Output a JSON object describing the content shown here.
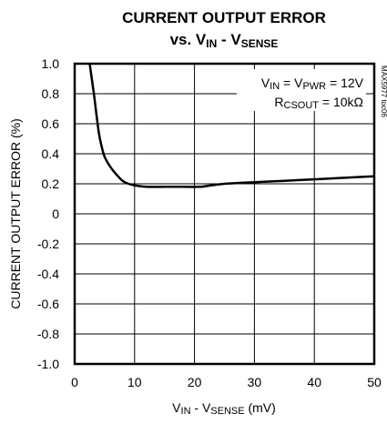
{
  "chart_data": {
    "type": "line",
    "title_line1": "CURRENT OUTPUT ERROR",
    "title_line2": {
      "prefix": "vs. V",
      "sub1": "IN",
      "mid": " - V",
      "sub2": "SENSE"
    },
    "xlabel": {
      "prefix": "V",
      "sub1": "IN",
      "mid": " - V",
      "sub2": "SENSE",
      "suffix": " (mV)"
    },
    "ylabel": "CURRENT OUTPUT ERROR (%)",
    "xlim": [
      0,
      50
    ],
    "ylim": [
      -1.0,
      1.0
    ],
    "x_ticks": [
      0,
      10,
      20,
      30,
      40,
      50
    ],
    "x_tick_labels": [
      "0",
      "10",
      "20",
      "30",
      "40",
      "50"
    ],
    "y_ticks": [
      1.0,
      0.8,
      0.6,
      0.4,
      0.2,
      0,
      -0.2,
      -0.4,
      -0.6,
      -0.8,
      -1.0
    ],
    "y_tick_labels": [
      "1.0",
      "0.8",
      "0.6",
      "0.4",
      "0.2",
      "0",
      "-0.2",
      "-0.4",
      "-0.6",
      "-0.8",
      "-1.0"
    ],
    "grid": true,
    "annotation_line1": {
      "p1": "V",
      "s1": "IN",
      "p2": " = V",
      "s2": "PWR",
      "p3": " = 12V"
    },
    "annotation_line2": {
      "p1": "R",
      "s1": "CSOUT",
      "p2": " = 10kΩ"
    },
    "figure_id": "MAX5977 toc06",
    "series": [
      {
        "color": "#000000",
        "x": [
          2.5,
          3.2,
          4.0,
          4.5,
          5.0,
          6.0,
          7.0,
          8.0,
          9.0,
          10.0,
          12.0,
          15.0,
          18.0,
          21.0,
          22.0,
          25.0,
          30.0,
          35.0,
          40.0,
          45.0,
          50.0
        ],
        "y": [
          1.0,
          0.8,
          0.55,
          0.45,
          0.38,
          0.31,
          0.26,
          0.22,
          0.2,
          0.19,
          0.18,
          0.18,
          0.18,
          0.18,
          0.185,
          0.2,
          0.21,
          0.22,
          0.23,
          0.24,
          0.25
        ]
      }
    ]
  }
}
